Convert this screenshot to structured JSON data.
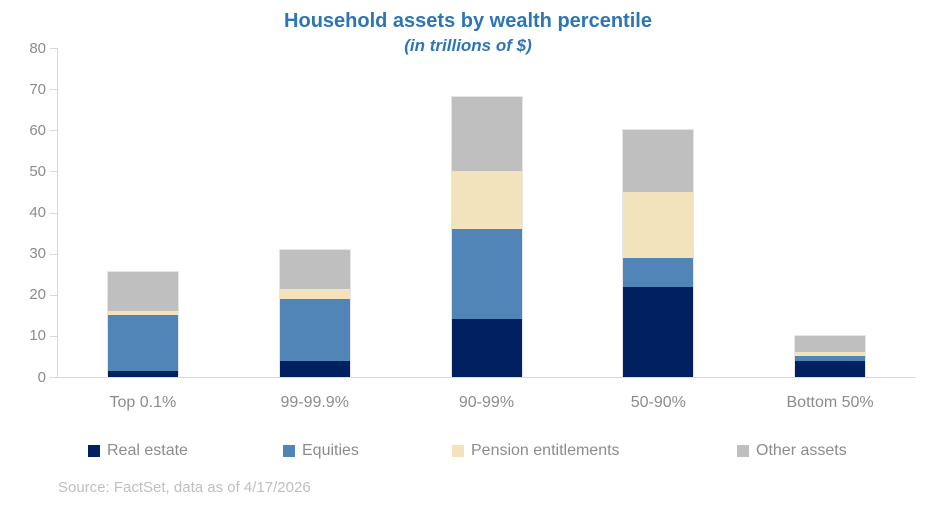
{
  "title": {
    "line1": "Household assets by wealth percentile",
    "line2": "(in trillions of $)"
  },
  "source_note": "Source: FactSet, data as of 4/17/2026",
  "colors": {
    "title_text": "#2e75b6",
    "real_estate": "#002060",
    "equities": "#5185b8",
    "pension_entitlements": "#f2e3bc",
    "other_assets": "#bfbfbf",
    "axis_line": "#d9d9d9",
    "axis_label_text": "#8c8c8c",
    "source_text": "#bfbfbf"
  },
  "chart_data": {
    "type": "bar",
    "stacked": true,
    "title": "Household assets by wealth percentile",
    "subtitle": "(in trillions of $)",
    "categories": [
      "Top 0.1%",
      "99-99.9%",
      "90-99%",
      "50-90%",
      "Bottom 50%"
    ],
    "series": [
      {
        "name": "Real estate",
        "color": "#002060",
        "values": [
          1.5,
          4,
          14,
          22,
          4
        ]
      },
      {
        "name": "Equities",
        "color": "#5185b8",
        "values": [
          13.5,
          15,
          22,
          7,
          1
        ]
      },
      {
        "name": "Pension entitlements",
        "color": "#f2e3bc",
        "values": [
          1,
          2.5,
          14,
          16,
          1
        ]
      },
      {
        "name": "Other assets",
        "color": "#bfbfbf",
        "values": [
          9.5,
          9.5,
          18,
          15,
          4
        ]
      }
    ],
    "totals": [
      25.5,
      31,
      68,
      60,
      10
    ],
    "ylim": [
      0,
      80
    ],
    "y_ticks": [
      0,
      10,
      20,
      30,
      40,
      50,
      60,
      70,
      80
    ],
    "grid": false,
    "legend_position": "bottom"
  }
}
